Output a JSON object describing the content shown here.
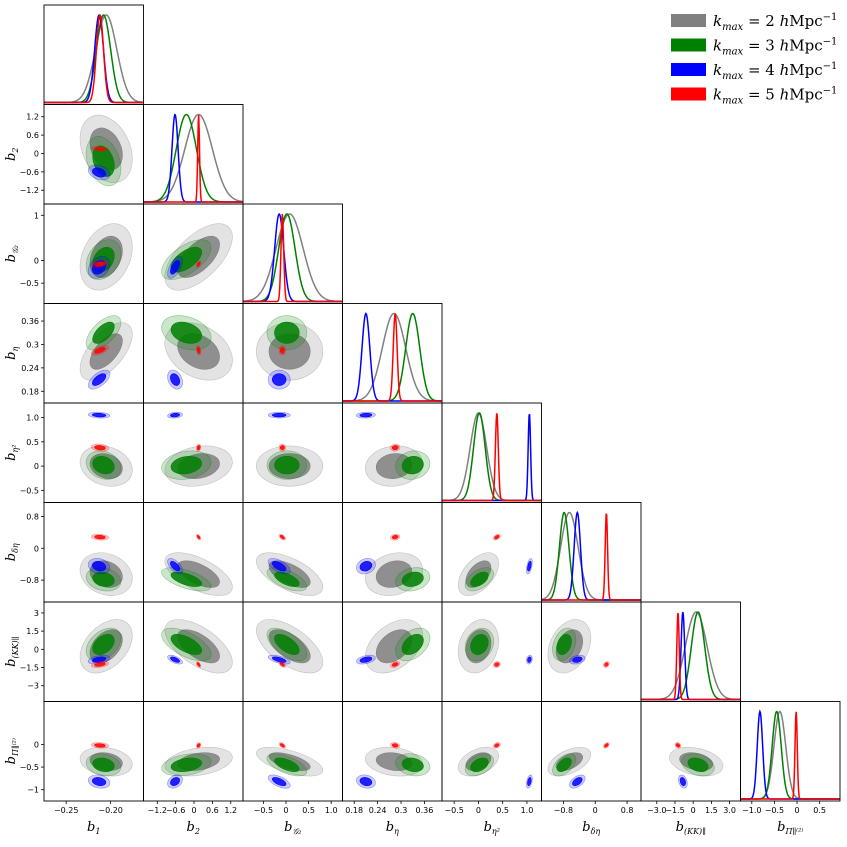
{
  "chart_data": {
    "type": "corner",
    "title": "",
    "parameters": [
      {
        "id": "b1",
        "base": "b",
        "sub": "1",
        "range": [
          -0.275,
          -0.163
        ],
        "ticks": [
          -0.25,
          -0.2
        ],
        "tick_labels": [
          "−0.25",
          "−0.20"
        ]
      },
      {
        "id": "b2",
        "base": "b",
        "sub": "2",
        "range": [
          -1.65,
          1.6
        ],
        "ticks": [
          -1.2,
          -0.6,
          0,
          0.6,
          1.2
        ],
        "tick_labels": [
          "−1.2",
          "−0.6",
          "0",
          "0.6",
          "1.2"
        ]
      },
      {
        "id": "bG2",
        "base": "b",
        "sub": "𝒢₂",
        "range": [
          -0.95,
          1.25
        ],
        "ticks": [
          -0.5,
          0,
          0.5,
          1.0
        ],
        "tick_labels": [
          "−0.5",
          "0",
          "0.5",
          "1.0"
        ]
      },
      {
        "id": "beta",
        "base": "b",
        "sub": "η",
        "range": [
          0.15,
          0.405
        ],
        "ticks": [
          0.18,
          0.24,
          0.3,
          0.36
        ],
        "tick_labels": [
          "0.18",
          "0.24",
          "0.3",
          "0.36"
        ]
      },
      {
        "id": "beta2",
        "base": "b",
        "sub": "η²",
        "range": [
          -0.75,
          1.3
        ],
        "ticks": [
          -0.5,
          0,
          0.5,
          1.0
        ],
        "tick_labels": [
          "−0.5",
          "0",
          "0.5",
          "1.0"
        ]
      },
      {
        "id": "bdeltaeta",
        "base": "b",
        "sub": "δη",
        "range": [
          -1.35,
          1.15
        ],
        "ticks": [
          -0.8,
          0,
          0.8
        ],
        "tick_labels": [
          "−0.8",
          "0",
          "0.8"
        ]
      },
      {
        "id": "bKK",
        "base": "b",
        "sub": "(KK)∥",
        "range": [
          -4.3,
          3.9
        ],
        "ticks": [
          -3.0,
          -1.5,
          0,
          1.5,
          3.0
        ],
        "tick_labels": [
          "−3.0",
          "−1.5",
          "0",
          "1.5",
          "3.0"
        ]
      },
      {
        "id": "bPi",
        "base": "b",
        "sub": "Π∥⁽²⁾",
        "range": [
          -1.25,
          0.95
        ],
        "ticks": [
          -1.0,
          -0.5,
          0,
          0.5
        ],
        "tick_labels": [
          "−1.0",
          "−0.5",
          "0",
          "0.5"
        ]
      }
    ],
    "y_tick_labels": {
      "1": [
        "1.2",
        "0.6",
        "0",
        "−0.6",
        "−1.2"
      ],
      "2": [
        "1",
        "0",
        "−0.5"
      ],
      "3": [
        "0.36",
        "0.3",
        "0.24",
        "0.18"
      ],
      "4": [
        "1.0",
        "0.5",
        "0",
        "−0.5"
      ],
      "5": [
        "0.8",
        "0",
        "−0.8"
      ],
      "6": [
        "3",
        "1.5",
        "0",
        "−1.5",
        "−3"
      ],
      "7": [
        "0",
        "−0.5",
        "−1"
      ]
    },
    "y_tick_values": {
      "1": [
        1.2,
        0.6,
        0,
        -0.6,
        -1.2
      ],
      "2": [
        1,
        0,
        -0.5
      ],
      "3": [
        0.36,
        0.3,
        0.24,
        0.18
      ],
      "4": [
        1.0,
        0.5,
        0,
        -0.5
      ],
      "5": [
        0.8,
        0,
        -0.8
      ],
      "6": [
        3,
        1.5,
        0,
        -1.5,
        -3
      ],
      "7": [
        0,
        -0.5,
        -1
      ]
    },
    "series": [
      {
        "name": "k_max = 2 hMpc⁻¹",
        "kmax": "2",
        "color": "#808080",
        "means": [
          -0.205,
          0.15,
          0.08,
          0.282,
          0.0,
          -0.65,
          0.25,
          -0.38
        ],
        "sigmas": [
          0.012,
          0.45,
          0.3,
          0.03,
          0.17,
          0.22,
          0.9,
          0.13
        ]
      },
      {
        "name": "k_max = 3 hMpc⁻¹",
        "kmax": "3",
        "color": "#008000",
        "means": [
          -0.208,
          -0.25,
          0.02,
          0.33,
          0.02,
          -0.78,
          0.4,
          -0.45
        ],
        "sigmas": [
          0.008,
          0.33,
          0.18,
          0.018,
          0.12,
          0.12,
          0.55,
          0.1
        ]
      },
      {
        "name": "k_max = 4 hMpc⁻¹",
        "kmax": "4",
        "color": "#0000ff",
        "means": [
          -0.213,
          -0.62,
          -0.15,
          0.21,
          1.05,
          -0.45,
          -0.85,
          -0.82
        ],
        "sigmas": [
          0.005,
          0.1,
          0.1,
          0.01,
          0.025,
          0.08,
          0.15,
          0.06
        ]
      },
      {
        "name": "k_max = 5 hMpc⁻¹",
        "kmax": "5",
        "color": "#ff0000",
        "means": [
          -0.212,
          0.15,
          -0.08,
          0.285,
          0.38,
          0.28,
          -1.25,
          -0.02
        ],
        "sigmas": [
          0.004,
          0.03,
          0.03,
          0.005,
          0.03,
          0.03,
          0.1,
          0.025
        ]
      }
    ],
    "legend": {
      "position": "top-right",
      "prefix": "k",
      "sub": "max",
      "eq": " = ",
      "unit_h": "h",
      "unit": "Mpc",
      "exp": "−1"
    }
  }
}
